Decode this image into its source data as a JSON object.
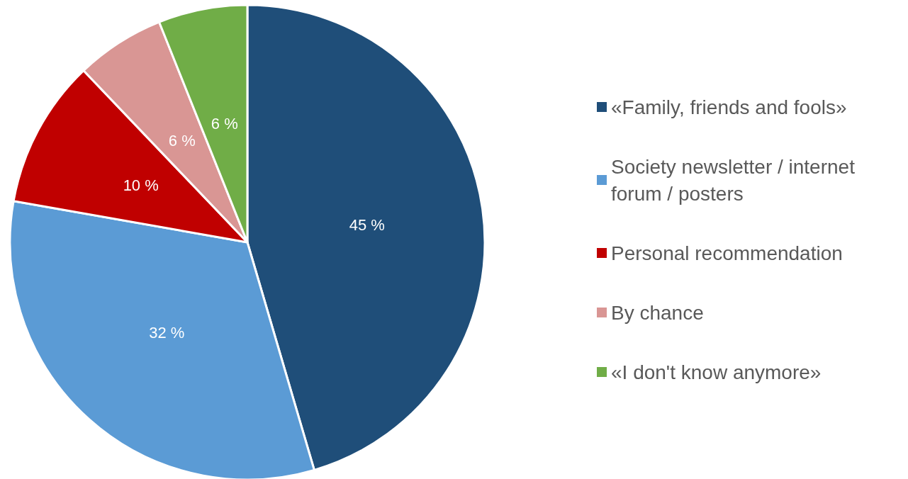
{
  "chart_data": {
    "type": "pie",
    "categories": [
      "«Family, friends and fools»",
      "Society newsletter / internet forum / posters",
      "Personal recommendation",
      "By chance",
      "«I don't know anymore»"
    ],
    "values": [
      45,
      32,
      10,
      6,
      6
    ],
    "value_labels": [
      "45 %",
      "32 %",
      "10 %",
      "6 %",
      "6 %"
    ],
    "colors": [
      "#1f4e79",
      "#5b9bd5",
      "#c00000",
      "#d99694",
      "#70ad47"
    ],
    "legend": "right"
  }
}
